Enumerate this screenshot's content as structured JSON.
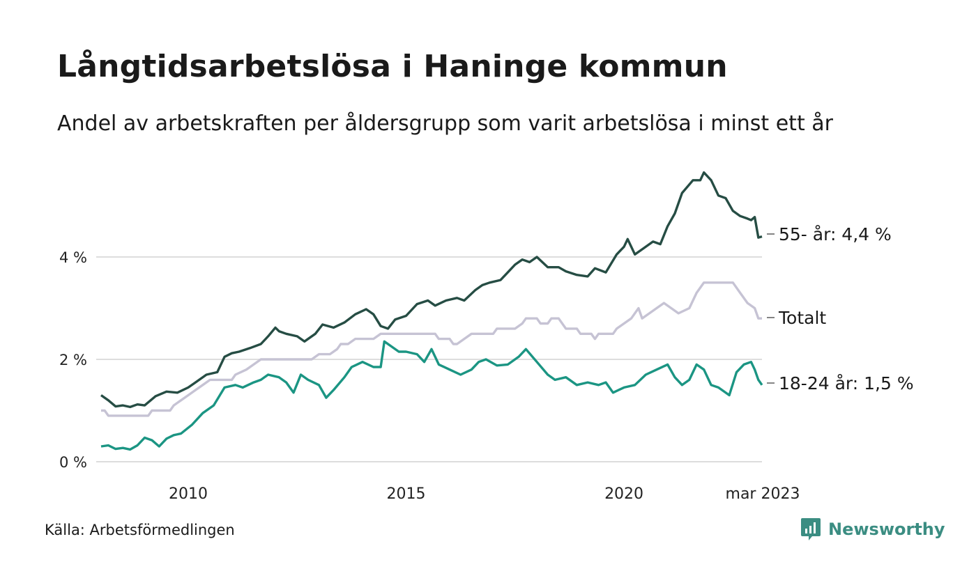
{
  "title": "Långtidsarbetslösa i Haninge kommun",
  "subtitle": "Andel av arbetskraften per åldersgrupp som varit arbetslösa i minst ett år",
  "source": "Källa: Arbetsförmedlingen",
  "brand": "Newsworthy",
  "chart_data": {
    "type": "line",
    "title": "Långtidsarbetslösa i Haninge kommun",
    "subtitle": "Andel av arbetskraften per åldersgrupp som varit arbetslösa i minst ett år",
    "xlabel": "",
    "ylabel": "",
    "x_range": [
      "2008-01",
      "2023-03"
    ],
    "ylim": [
      0,
      5.8
    ],
    "y_ticks": [
      0,
      2,
      4
    ],
    "y_tick_labels": [
      "0 %",
      "2 %",
      "4 %"
    ],
    "x_ticks": [
      "2010-01",
      "2015-01",
      "2020-01",
      "2023-03"
    ],
    "x_tick_labels": [
      "2010",
      "2015",
      "2020",
      "mar 2023"
    ],
    "grid": true,
    "series": [
      {
        "name": "55- år",
        "end_label": "55- år: 4,4 %",
        "color": "#264d44",
        "points": [
          [
            "2008-01",
            1.3
          ],
          [
            "2008-03",
            1.2
          ],
          [
            "2008-05",
            1.08
          ],
          [
            "2008-07",
            1.1
          ],
          [
            "2008-09",
            1.07
          ],
          [
            "2008-11",
            1.12
          ],
          [
            "2009-01",
            1.1
          ],
          [
            "2009-04",
            1.28
          ],
          [
            "2009-07",
            1.37
          ],
          [
            "2009-10",
            1.35
          ],
          [
            "2010-01",
            1.45
          ],
          [
            "2010-03",
            1.55
          ],
          [
            "2010-06",
            1.7
          ],
          [
            "2010-09",
            1.75
          ],
          [
            "2010-11",
            2.05
          ],
          [
            "2011-01",
            2.12
          ],
          [
            "2011-03",
            2.15
          ],
          [
            "2011-06",
            2.22
          ],
          [
            "2011-09",
            2.3
          ],
          [
            "2011-11",
            2.45
          ],
          [
            "2012-01",
            2.62
          ],
          [
            "2012-02",
            2.55
          ],
          [
            "2012-04",
            2.5
          ],
          [
            "2012-07",
            2.45
          ],
          [
            "2012-09",
            2.35
          ],
          [
            "2012-12",
            2.5
          ],
          [
            "2013-02",
            2.68
          ],
          [
            "2013-05",
            2.62
          ],
          [
            "2013-08",
            2.72
          ],
          [
            "2013-11",
            2.88
          ],
          [
            "2014-02",
            2.98
          ],
          [
            "2014-04",
            2.88
          ],
          [
            "2014-06",
            2.65
          ],
          [
            "2014-08",
            2.6
          ],
          [
            "2014-10",
            2.78
          ],
          [
            "2015-01",
            2.85
          ],
          [
            "2015-04",
            3.08
          ],
          [
            "2015-07",
            3.15
          ],
          [
            "2015-09",
            3.05
          ],
          [
            "2015-12",
            3.15
          ],
          [
            "2016-03",
            3.2
          ],
          [
            "2016-05",
            3.15
          ],
          [
            "2016-08",
            3.35
          ],
          [
            "2016-10",
            3.45
          ],
          [
            "2016-12",
            3.5
          ],
          [
            "2017-03",
            3.55
          ],
          [
            "2017-05",
            3.7
          ],
          [
            "2017-07",
            3.85
          ],
          [
            "2017-09",
            3.95
          ],
          [
            "2017-11",
            3.9
          ],
          [
            "2018-01",
            4.0
          ],
          [
            "2018-04",
            3.8
          ],
          [
            "2018-07",
            3.8
          ],
          [
            "2018-09",
            3.72
          ],
          [
            "2018-12",
            3.65
          ],
          [
            "2019-03",
            3.62
          ],
          [
            "2019-05",
            3.78
          ],
          [
            "2019-08",
            3.7
          ],
          [
            "2019-11",
            4.05
          ],
          [
            "2020-01",
            4.2
          ],
          [
            "2020-02",
            4.35
          ],
          [
            "2020-04",
            4.05
          ],
          [
            "2020-06",
            4.15
          ],
          [
            "2020-09",
            4.3
          ],
          [
            "2020-11",
            4.25
          ],
          [
            "2021-01",
            4.6
          ],
          [
            "2021-03",
            4.85
          ],
          [
            "2021-05",
            5.25
          ],
          [
            "2021-08",
            5.5
          ],
          [
            "2021-10",
            5.5
          ],
          [
            "2021-11",
            5.65
          ],
          [
            "2022-01",
            5.5
          ],
          [
            "2022-03",
            5.2
          ],
          [
            "2022-05",
            5.15
          ],
          [
            "2022-07",
            4.9
          ],
          [
            "2022-09",
            4.8
          ],
          [
            "2022-11",
            4.75
          ],
          [
            "2022-12",
            4.72
          ],
          [
            "2023-01",
            4.78
          ],
          [
            "2023-02",
            4.38
          ],
          [
            "2023-03",
            4.4
          ]
        ]
      },
      {
        "name": "Totalt",
        "end_label": "Totalt",
        "color": "#c6c3d4",
        "points": [
          [
            "2008-01",
            1.0
          ],
          [
            "2008-02",
            1.0
          ],
          [
            "2008-03",
            0.9
          ],
          [
            "2009-02",
            0.9
          ],
          [
            "2009-03",
            1.0
          ],
          [
            "2009-08",
            1.0
          ],
          [
            "2009-09",
            1.1
          ],
          [
            "2009-11",
            1.2
          ],
          [
            "2010-01",
            1.3
          ],
          [
            "2010-03",
            1.4
          ],
          [
            "2010-05",
            1.5
          ],
          [
            "2010-07",
            1.6
          ],
          [
            "2011-01",
            1.6
          ],
          [
            "2011-02",
            1.7
          ],
          [
            "2011-05",
            1.8
          ],
          [
            "2011-07",
            1.9
          ],
          [
            "2011-09",
            2.0
          ],
          [
            "2012-11",
            2.0
          ],
          [
            "2013-01",
            2.1
          ],
          [
            "2013-04",
            2.1
          ],
          [
            "2013-06",
            2.2
          ],
          [
            "2013-07",
            2.3
          ],
          [
            "2013-09",
            2.3
          ],
          [
            "2013-11",
            2.4
          ],
          [
            "2014-04",
            2.4
          ],
          [
            "2014-06",
            2.5
          ],
          [
            "2015-09",
            2.5
          ],
          [
            "2015-10",
            2.4
          ],
          [
            "2016-01",
            2.4
          ],
          [
            "2016-02",
            2.3
          ],
          [
            "2016-03",
            2.3
          ],
          [
            "2016-05",
            2.4
          ],
          [
            "2016-07",
            2.5
          ],
          [
            "2017-01",
            2.5
          ],
          [
            "2017-02",
            2.6
          ],
          [
            "2017-07",
            2.6
          ],
          [
            "2017-09",
            2.7
          ],
          [
            "2017-10",
            2.8
          ],
          [
            "2018-01",
            2.8
          ],
          [
            "2018-02",
            2.7
          ],
          [
            "2018-04",
            2.7
          ],
          [
            "2018-05",
            2.8
          ],
          [
            "2018-07",
            2.8
          ],
          [
            "2018-09",
            2.6
          ],
          [
            "2018-12",
            2.6
          ],
          [
            "2019-01",
            2.5
          ],
          [
            "2019-04",
            2.5
          ],
          [
            "2019-05",
            2.4
          ],
          [
            "2019-06",
            2.5
          ],
          [
            "2019-10",
            2.5
          ],
          [
            "2019-11",
            2.6
          ],
          [
            "2020-01",
            2.7
          ],
          [
            "2020-03",
            2.8
          ],
          [
            "2020-05",
            3.0
          ],
          [
            "2020-06",
            2.8
          ],
          [
            "2020-08",
            2.9
          ],
          [
            "2020-10",
            3.0
          ],
          [
            "2020-12",
            3.1
          ],
          [
            "2021-02",
            3.0
          ],
          [
            "2021-04",
            2.9
          ],
          [
            "2021-07",
            3.0
          ],
          [
            "2021-09",
            3.3
          ],
          [
            "2021-11",
            3.5
          ],
          [
            "2022-07",
            3.5
          ],
          [
            "2022-09",
            3.3
          ],
          [
            "2022-11",
            3.1
          ],
          [
            "2023-01",
            3.0
          ],
          [
            "2023-02",
            2.8
          ],
          [
            "2023-03",
            2.8
          ]
        ]
      },
      {
        "name": "18-24 år",
        "end_label": "18-24 år: 1,5 %",
        "color": "#1b9583",
        "points": [
          [
            "2008-01",
            0.3
          ],
          [
            "2008-03",
            0.32
          ],
          [
            "2008-05",
            0.25
          ],
          [
            "2008-07",
            0.27
          ],
          [
            "2008-09",
            0.24
          ],
          [
            "2008-11",
            0.32
          ],
          [
            "2009-01",
            0.47
          ],
          [
            "2009-03",
            0.42
          ],
          [
            "2009-05",
            0.3
          ],
          [
            "2009-07",
            0.45
          ],
          [
            "2009-09",
            0.52
          ],
          [
            "2009-11",
            0.55
          ],
          [
            "2010-02",
            0.72
          ],
          [
            "2010-05",
            0.95
          ],
          [
            "2010-08",
            1.1
          ],
          [
            "2010-11",
            1.45
          ],
          [
            "2011-02",
            1.5
          ],
          [
            "2011-04",
            1.45
          ],
          [
            "2011-07",
            1.55
          ],
          [
            "2011-09",
            1.6
          ],
          [
            "2011-11",
            1.7
          ],
          [
            "2012-02",
            1.65
          ],
          [
            "2012-04",
            1.55
          ],
          [
            "2012-06",
            1.35
          ],
          [
            "2012-08",
            1.7
          ],
          [
            "2012-10",
            1.6
          ],
          [
            "2013-01",
            1.5
          ],
          [
            "2013-03",
            1.25
          ],
          [
            "2013-05",
            1.4
          ],
          [
            "2013-08",
            1.65
          ],
          [
            "2013-10",
            1.85
          ],
          [
            "2014-01",
            1.95
          ],
          [
            "2014-04",
            1.85
          ],
          [
            "2014-06",
            1.85
          ],
          [
            "2014-07",
            2.35
          ],
          [
            "2014-09",
            2.25
          ],
          [
            "2014-11",
            2.15
          ],
          [
            "2015-01",
            2.15
          ],
          [
            "2015-04",
            2.1
          ],
          [
            "2015-06",
            1.95
          ],
          [
            "2015-08",
            2.2
          ],
          [
            "2015-10",
            1.9
          ],
          [
            "2016-01",
            1.8
          ],
          [
            "2016-04",
            1.7
          ],
          [
            "2016-07",
            1.8
          ],
          [
            "2016-09",
            1.95
          ],
          [
            "2016-11",
            2.0
          ],
          [
            "2017-02",
            1.88
          ],
          [
            "2017-05",
            1.9
          ],
          [
            "2017-08",
            2.05
          ],
          [
            "2017-10",
            2.2
          ],
          [
            "2018-01",
            1.95
          ],
          [
            "2018-04",
            1.7
          ],
          [
            "2018-06",
            1.6
          ],
          [
            "2018-09",
            1.65
          ],
          [
            "2018-12",
            1.5
          ],
          [
            "2019-03",
            1.55
          ],
          [
            "2019-06",
            1.5
          ],
          [
            "2019-08",
            1.55
          ],
          [
            "2019-10",
            1.35
          ],
          [
            "2020-01",
            1.45
          ],
          [
            "2020-04",
            1.5
          ],
          [
            "2020-07",
            1.7
          ],
          [
            "2020-10",
            1.8
          ],
          [
            "2021-01",
            1.9
          ],
          [
            "2021-03",
            1.65
          ],
          [
            "2021-05",
            1.5
          ],
          [
            "2021-07",
            1.6
          ],
          [
            "2021-09",
            1.9
          ],
          [
            "2021-11",
            1.8
          ],
          [
            "2022-01",
            1.5
          ],
          [
            "2022-03",
            1.45
          ],
          [
            "2022-05",
            1.35
          ],
          [
            "2022-06",
            1.3
          ],
          [
            "2022-08",
            1.75
          ],
          [
            "2022-10",
            1.9
          ],
          [
            "2022-12",
            1.95
          ],
          [
            "2023-01",
            1.8
          ],
          [
            "2023-02",
            1.6
          ],
          [
            "2023-03",
            1.5
          ]
        ]
      }
    ]
  }
}
